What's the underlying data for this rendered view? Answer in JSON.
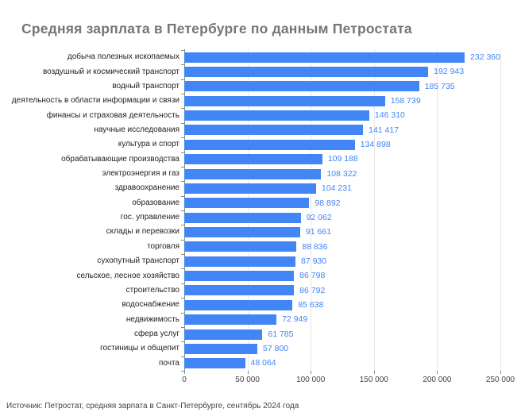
{
  "title": "Средняя зарплата в Петербурге по данным Петростата",
  "source_note": "Источник: Петростат, средняя зарпата в Санкт-Петербурге, сентябрь 2024 года",
  "chart_data": {
    "type": "bar",
    "orientation": "horizontal",
    "title": "Средняя зарплата в Петербурге по данным Петростата",
    "categories": [
      "добыча полезных ископаемых",
      "воздушный и космический транспорт",
      "водный транспорт",
      "деятельность в области информации и связи",
      "финансы и страховая деятельность",
      "научные исследования",
      "культура и спорт",
      "обрабатывающие производства",
      "электроэнергия и газ",
      "здравоохранение",
      "образование",
      "гос. управление",
      "склады и перевозки",
      "торговля",
      "сухопутный транспорт",
      "сельское, лесное хозяйство",
      "строительство",
      "водоснабжение",
      "недвижимость",
      "сфера услуг",
      "гостиницы и общепит",
      "почта"
    ],
    "values": [
      232360,
      192943,
      185735,
      158739,
      146310,
      141417,
      134898,
      109188,
      108322,
      104231,
      98892,
      92062,
      91661,
      88836,
      87930,
      86798,
      86792,
      85638,
      72949,
      61785,
      57800,
      48064
    ],
    "value_labels": [
      "232 360",
      "192 943",
      "185 735",
      "158 739",
      "146 310",
      "141 417",
      "134 898",
      "109 188",
      "108 322",
      "104 231",
      "98 892",
      "92 062",
      "91 661",
      "88 836",
      "87 930",
      "86 798",
      "86 792",
      "85 638",
      "72 949",
      "61 785",
      "57 800",
      "48 064"
    ],
    "xlabel": "",
    "ylabel": "",
    "xlim": [
      0,
      250000
    ],
    "x_ticks": [
      0,
      50000,
      100000,
      150000,
      200000,
      250000
    ],
    "x_tick_labels": [
      "0",
      "50 000",
      "100 000",
      "150 000",
      "200 000",
      "250 000"
    ],
    "grid": true,
    "legend": "none",
    "colors": {
      "bar": "#4285F4",
      "value_label": "#4285F4",
      "title": "#757575",
      "category_label": "#222222",
      "axis_label": "#444444",
      "gridline": "#e6e6e6",
      "axis_line": "#8a8a8a",
      "background": "#ffffff"
    }
  }
}
